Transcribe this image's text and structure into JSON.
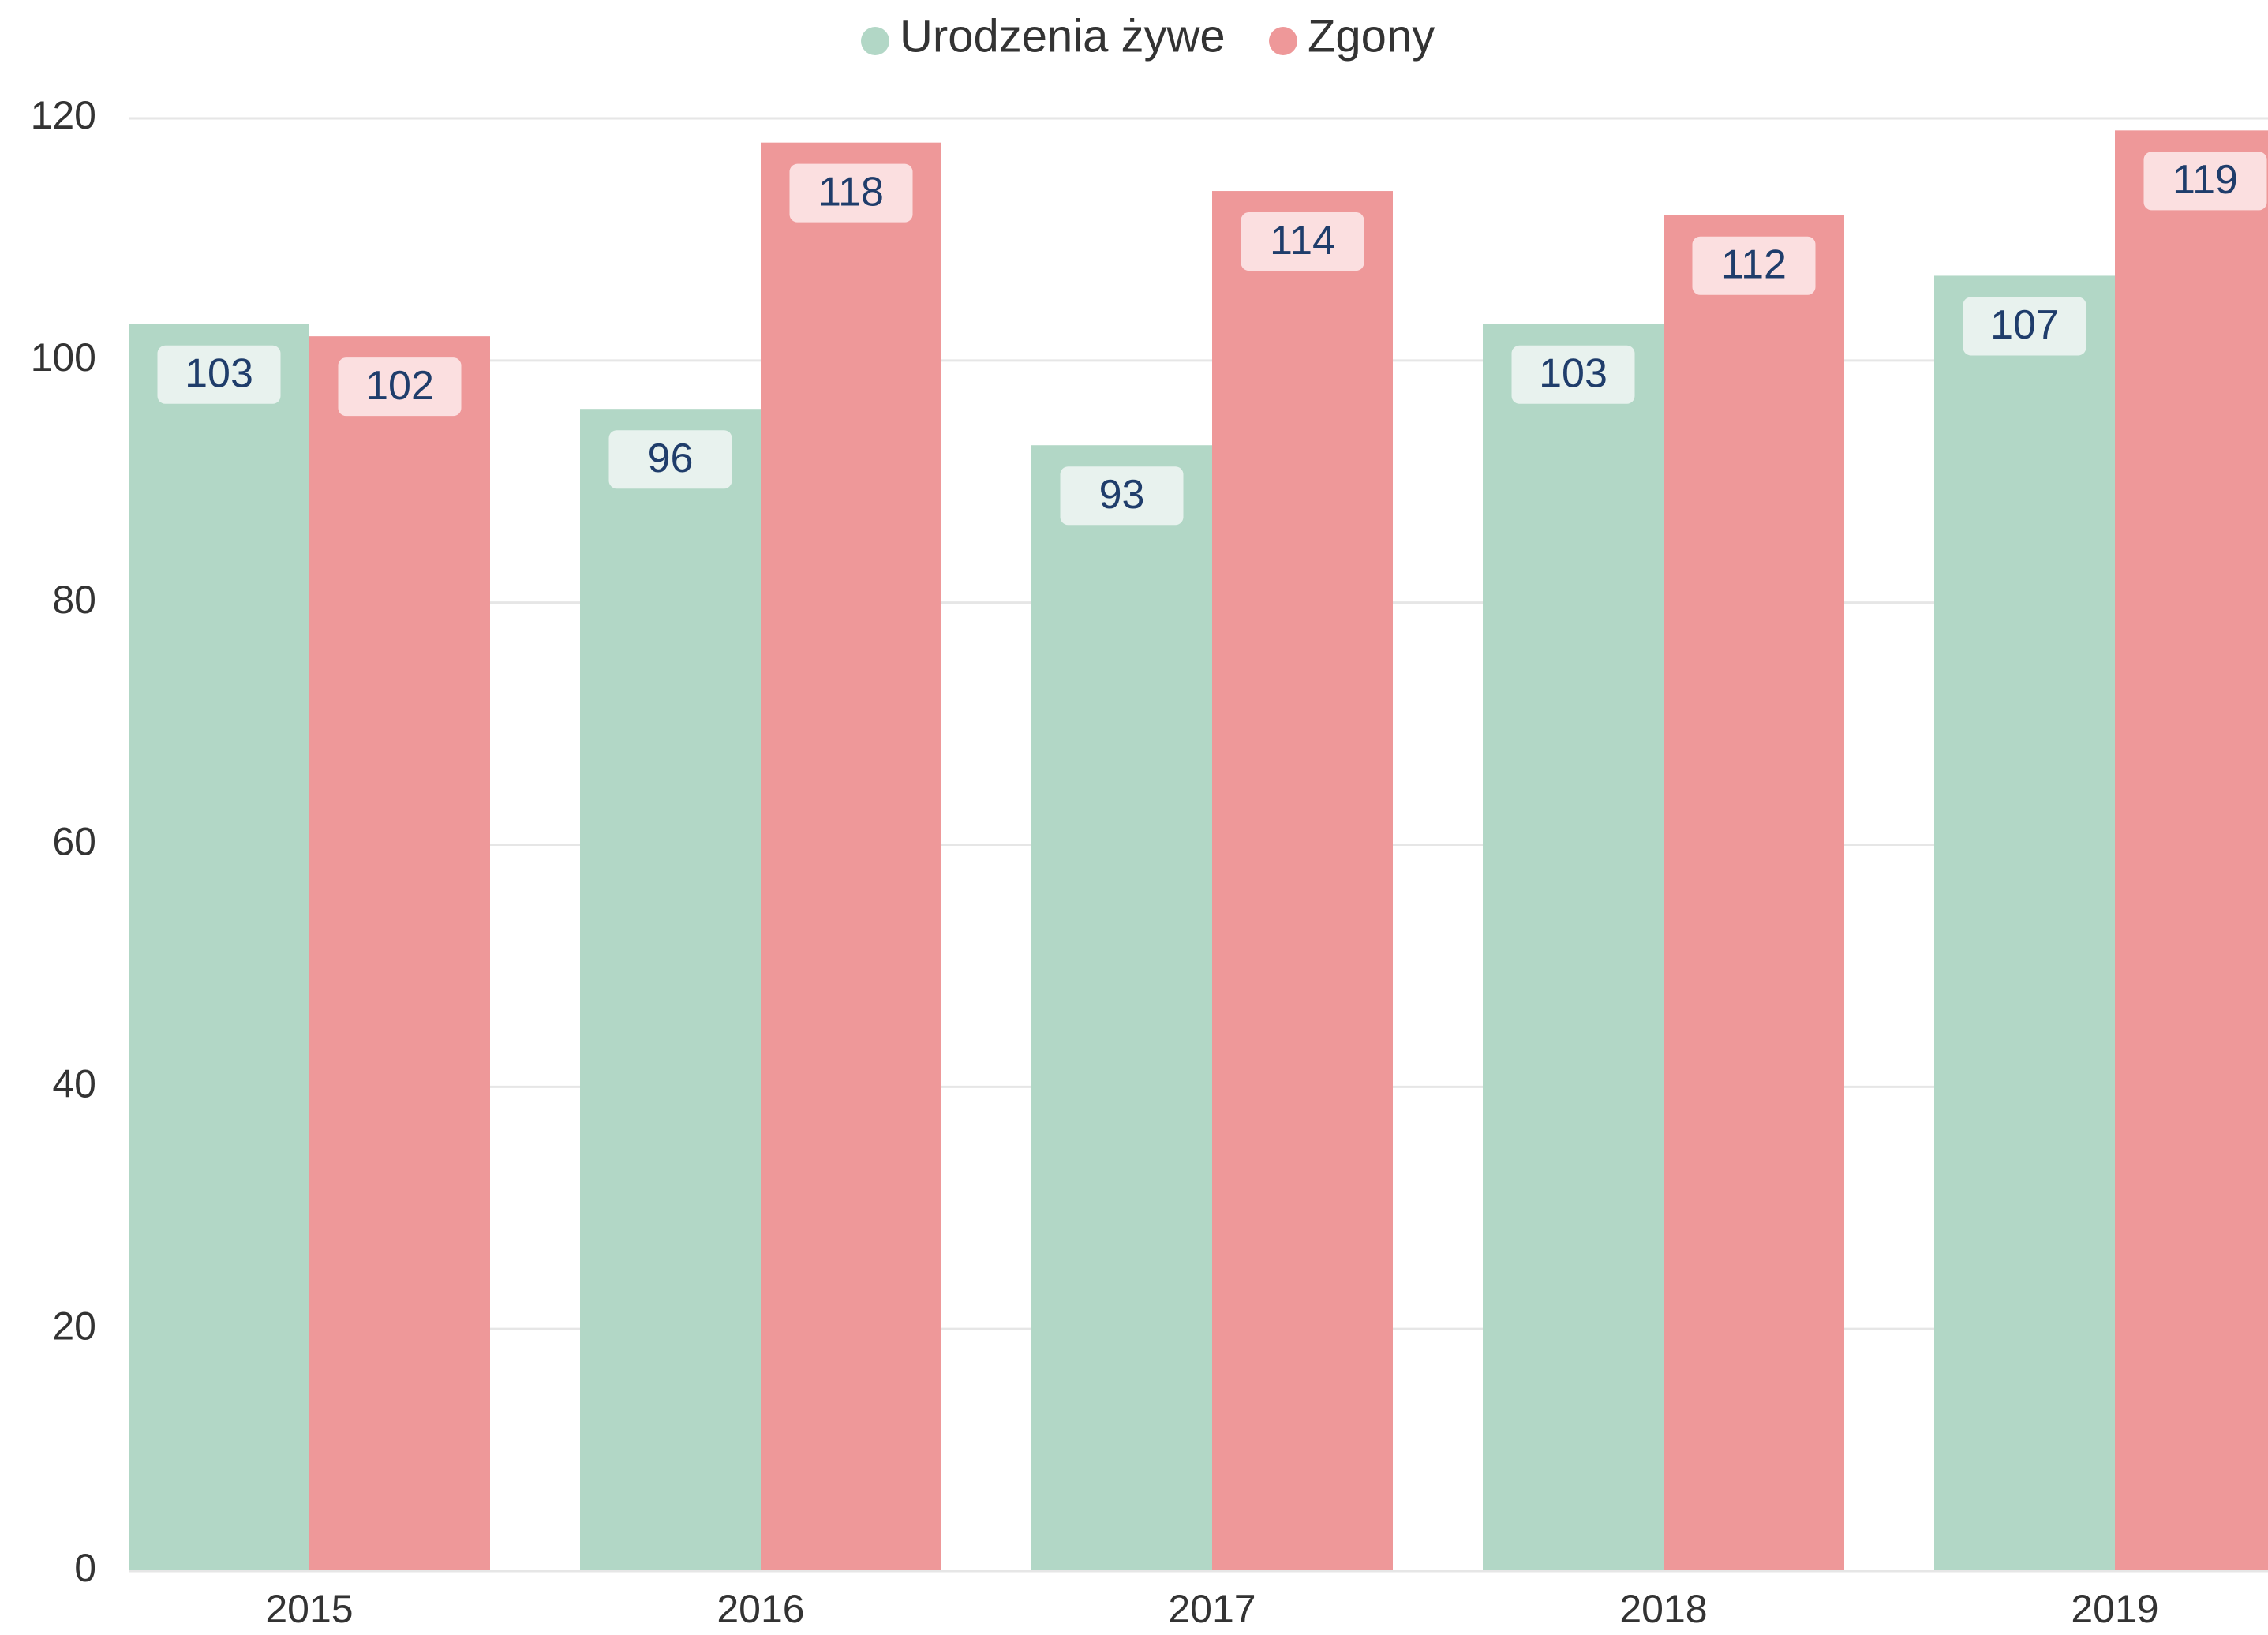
{
  "chart_data": {
    "type": "bar",
    "categories": [
      "2015",
      "2016",
      "2017",
      "2018",
      "2019"
    ],
    "series": [
      {
        "name": "Urodzenia żywe",
        "color": "#b2d7c6",
        "values": [
          103,
          96,
          93,
          103,
          107
        ]
      },
      {
        "name": "Zgony",
        "color": "#ee9899",
        "values": [
          102,
          118,
          114,
          112,
          119
        ]
      }
    ],
    "ylim": [
      0,
      120
    ],
    "yticks": [
      0,
      20,
      40,
      60,
      80,
      100,
      120
    ],
    "grid": true,
    "legend": "top"
  }
}
